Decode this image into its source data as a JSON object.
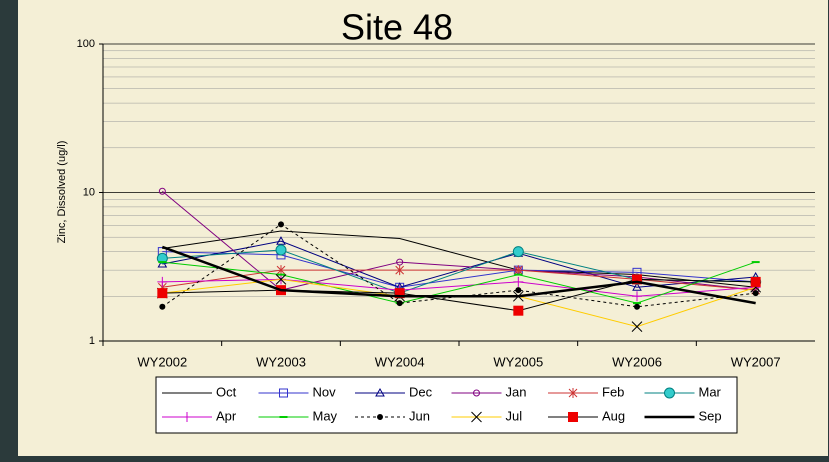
{
  "chart_data": {
    "type": "line",
    "title": "Site 48",
    "y_label": "Zinc, Dissolved (ug/l)",
    "categories": [
      "WY2002",
      "WY2003",
      "WY2004",
      "WY2005",
      "WY2006",
      "WY2007"
    ],
    "ylim": [
      1,
      100
    ],
    "yticks": [
      1,
      10,
      100
    ],
    "log_scale": true,
    "grid": true,
    "legend": "bottom",
    "series": [
      {
        "name": "Oct",
        "color": "#000000",
        "marker": "none",
        "values": [
          4.2,
          5.5,
          4.9,
          3.0,
          2.8,
          2.3
        ]
      },
      {
        "name": "Nov",
        "color": "#3333cc",
        "marker": "square",
        "values": [
          4.0,
          3.8,
          2.3,
          3.0,
          2.9,
          2.5
        ]
      },
      {
        "name": "Dec",
        "color": "#000080",
        "marker": "triangle",
        "values": [
          3.3,
          4.7,
          2.3,
          3.9,
          2.3,
          2.7
        ]
      },
      {
        "name": "Jan",
        "color": "#800080",
        "marker": "circle",
        "values": [
          10.2,
          2.2,
          3.4,
          3.0,
          2.7,
          2.2
        ]
      },
      {
        "name": "Feb",
        "color": "#cc3333",
        "marker": "star",
        "values": [
          2.3,
          3.0,
          3.0,
          3.0,
          2.6,
          2.2
        ]
      },
      {
        "name": "Mar",
        "color": "#008080",
        "marker": "circle-filled",
        "marker_color": "#33cccc",
        "values": [
          3.6,
          4.1,
          2.1,
          4.0,
          2.6,
          2.5
        ]
      },
      {
        "name": "Apr",
        "color": "#cc00cc",
        "marker": "plus",
        "values": [
          2.5,
          2.6,
          2.2,
          2.5,
          2.0,
          2.3
        ]
      },
      {
        "name": "May",
        "color": "#00cc00",
        "marker": "dash",
        "values": [
          3.4,
          2.8,
          1.8,
          2.8,
          1.8,
          3.4
        ]
      },
      {
        "name": "Jun",
        "color": "#000000",
        "marker": "dot",
        "dashed": true,
        "values": [
          1.7,
          6.1,
          1.8,
          2.2,
          1.7,
          2.1
        ]
      },
      {
        "name": "Jul",
        "color": "#ffcc00",
        "marker": "x",
        "marker_color": "#000000",
        "values": [
          2.1,
          2.6,
          2.0,
          2.0,
          1.25,
          2.3
        ]
      },
      {
        "name": "Aug",
        "color": "#000000",
        "marker": "square-filled",
        "marker_color": "#ee0000",
        "values": [
          2.1,
          2.2,
          2.1,
          1.6,
          2.6,
          2.5
        ]
      },
      {
        "name": "Sep",
        "color": "#000000",
        "marker": "none",
        "width": 2.5,
        "values": [
          4.3,
          2.2,
          2.0,
          2.0,
          2.5,
          1.8
        ]
      }
    ]
  }
}
